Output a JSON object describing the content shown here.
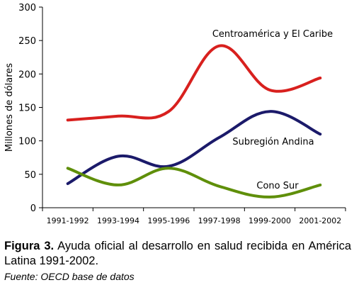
{
  "chart_data": {
    "type": "line",
    "title": "",
    "xlabel": "",
    "ylabel": "Millones de dólares",
    "ylim": [
      0,
      300
    ],
    "yticks": [
      "0",
      "50",
      "100",
      "150",
      "200",
      "250",
      "300"
    ],
    "categories": [
      "1991-1992",
      "1993-1994",
      "1995-1996",
      "1997-1998",
      "1999-2000",
      "2001-2002"
    ],
    "grid": false,
    "legend": "inline labels near lines",
    "series": [
      {
        "name": "Centroamérica y El Caribe",
        "color": "#d8201e",
        "values": [
          131,
          137,
          144,
          242,
          176,
          194
        ]
      },
      {
        "name": "Subregión Andina",
        "color": "#1b1a6a",
        "values": [
          36,
          77,
          62,
          105,
          144,
          110
        ]
      },
      {
        "name": "Cono Sur",
        "color": "#5f8f0a",
        "values": [
          59,
          34,
          59,
          32,
          16,
          34
        ]
      }
    ]
  },
  "caption": {
    "label": "Figura 3.",
    "text": "Ayuda oficial al desarrollo en salud recibida en América Latina 1991-2002."
  },
  "source": "Fuente: OECD base de datos"
}
